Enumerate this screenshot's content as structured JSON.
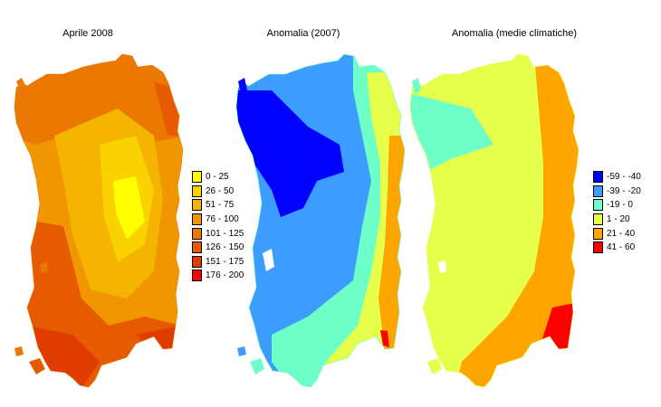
{
  "maps": [
    {
      "title": "Aprile 2008"
    },
    {
      "title": "Anomalia (2007)"
    },
    {
      "title": "Anomalia (medie climatiche)"
    }
  ],
  "legend_precip": [
    {
      "label": "0 - 25",
      "color": "#ffff00"
    },
    {
      "label": "26 - 50",
      "color": "#fad200"
    },
    {
      "label": "51 - 75",
      "color": "#f5b400"
    },
    {
      "label": "76 - 100",
      "color": "#f09600"
    },
    {
      "label": "101 - 125",
      "color": "#eb7800"
    },
    {
      "label": "126 - 150",
      "color": "#e65a00"
    },
    {
      "label": "151 - 175",
      "color": "#e13c00"
    },
    {
      "label": "176 - 200",
      "color": "#ff0000"
    }
  ],
  "legend_anomaly": [
    {
      "label": "-59 - -40",
      "color": "#0000ff"
    },
    {
      "label": "-39 - -20",
      "color": "#3c9cff"
    },
    {
      "label": "-19 - 0",
      "color": "#6effc8"
    },
    {
      "label": "1 - 20",
      "color": "#e6ff4a"
    },
    {
      "label": "21 - 40",
      "color": "#ffa500"
    },
    {
      "label": "41 - 60",
      "color": "#ff0000"
    }
  ]
}
